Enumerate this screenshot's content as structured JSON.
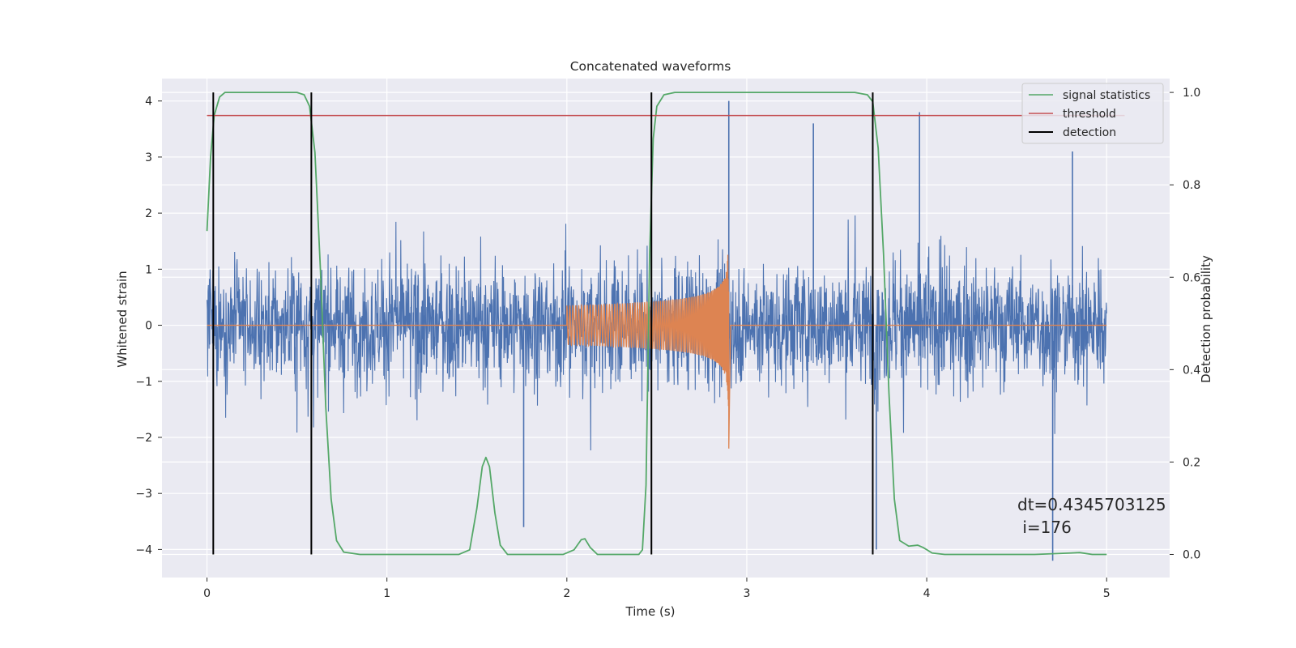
{
  "chart_data": {
    "type": "line",
    "title": "Concatenated waveforms",
    "xlabel": "Time (s)",
    "ylabel": "Whitened strain",
    "y2label": "Detection probability",
    "xlim": [
      -0.25,
      5.35
    ],
    "ylim": [
      -4.5,
      4.4
    ],
    "y2lim": [
      -0.05,
      1.03
    ],
    "grid": true,
    "legend_position": "top-right",
    "xticks": [
      0,
      1,
      2,
      3,
      4,
      5
    ],
    "xtick_labels": [
      "0",
      "1",
      "2",
      "3",
      "4",
      "5"
    ],
    "yticks": [
      -4,
      -3,
      -2,
      -1,
      0,
      1,
      2,
      3,
      4
    ],
    "ytick_labels": [
      "−4",
      "−3",
      "−2",
      "−1",
      "0",
      "1",
      "2",
      "3",
      "4"
    ],
    "y2ticks": [
      0.0,
      0.2,
      0.4,
      0.6,
      0.8,
      1.0
    ],
    "y2tick_labels": [
      "0.0",
      "0.2",
      "0.4",
      "0.6",
      "0.8",
      "1.0"
    ],
    "noise": {
      "color": "#4c72b0",
      "x_range": [
        0,
        5
      ],
      "typical_range": [
        -2.5,
        2.5
      ],
      "extremes": [
        {
          "x": 2.9,
          "y": 4.0
        },
        {
          "x": 4.7,
          "y": -4.2
        },
        {
          "x": 3.72,
          "y": -4.0
        },
        {
          "x": 3.96,
          "y": 3.8
        },
        {
          "x": 3.37,
          "y": 3.6
        },
        {
          "x": 4.81,
          "y": 3.1
        },
        {
          "x": 1.76,
          "y": -3.6
        }
      ]
    },
    "injected_waveform": {
      "color": "#dd8452",
      "t_start": 2.0,
      "t_merger": 2.9,
      "amplitude_start": 0.35,
      "amplitude_peak": 1.5,
      "min_at_merger": -2.2
    },
    "series": [
      {
        "name": "signal statistics",
        "color": "#55a868",
        "axis": "right",
        "points": [
          [
            0.0,
            0.7
          ],
          [
            0.02,
            0.86
          ],
          [
            0.04,
            0.95
          ],
          [
            0.07,
            0.99
          ],
          [
            0.1,
            1.0
          ],
          [
            0.3,
            1.0
          ],
          [
            0.5,
            1.0
          ],
          [
            0.54,
            0.995
          ],
          [
            0.57,
            0.97
          ],
          [
            0.6,
            0.87
          ],
          [
            0.63,
            0.62
          ],
          [
            0.66,
            0.32
          ],
          [
            0.69,
            0.12
          ],
          [
            0.72,
            0.03
          ],
          [
            0.76,
            0.005
          ],
          [
            0.85,
            0.0
          ],
          [
            1.4,
            0.0
          ],
          [
            1.46,
            0.01
          ],
          [
            1.5,
            0.1
          ],
          [
            1.53,
            0.19
          ],
          [
            1.55,
            0.21
          ],
          [
            1.57,
            0.19
          ],
          [
            1.6,
            0.09
          ],
          [
            1.63,
            0.02
          ],
          [
            1.67,
            0.0
          ],
          [
            1.98,
            0.0
          ],
          [
            2.04,
            0.01
          ],
          [
            2.08,
            0.032
          ],
          [
            2.1,
            0.034
          ],
          [
            2.13,
            0.015
          ],
          [
            2.17,
            0.0
          ],
          [
            2.4,
            0.0
          ],
          [
            2.42,
            0.01
          ],
          [
            2.44,
            0.15
          ],
          [
            2.46,
            0.65
          ],
          [
            2.48,
            0.9
          ],
          [
            2.5,
            0.97
          ],
          [
            2.54,
            0.995
          ],
          [
            2.6,
            1.0
          ],
          [
            3.6,
            1.0
          ],
          [
            3.67,
            0.995
          ],
          [
            3.7,
            0.98
          ],
          [
            3.73,
            0.88
          ],
          [
            3.76,
            0.65
          ],
          [
            3.79,
            0.35
          ],
          [
            3.82,
            0.12
          ],
          [
            3.85,
            0.03
          ],
          [
            3.9,
            0.018
          ],
          [
            3.95,
            0.02
          ],
          [
            3.98,
            0.015
          ],
          [
            4.03,
            0.003
          ],
          [
            4.1,
            0.0
          ],
          [
            4.6,
            0.0
          ],
          [
            4.8,
            0.003
          ],
          [
            4.85,
            0.004
          ],
          [
            4.92,
            0.0
          ],
          [
            5.0,
            0.0
          ]
        ]
      },
      {
        "name": "threshold",
        "color": "#c44e52",
        "axis": "right",
        "value": 0.95,
        "x_range": [
          0,
          5.1
        ]
      },
      {
        "name": "detection",
        "color": "#000000",
        "axis": "right",
        "x": [
          0.035,
          0.58,
          2.47,
          3.7
        ],
        "y_range": [
          0.0,
          1.0
        ]
      }
    ],
    "annotation": {
      "line1": "dt=0.4345703125",
      "line2": " i=176"
    }
  }
}
